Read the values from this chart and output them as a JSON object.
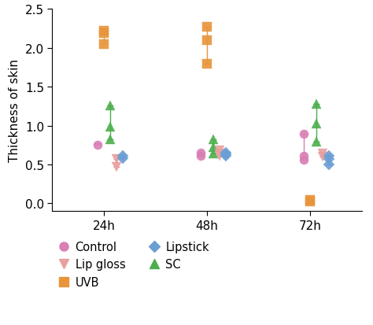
{
  "title": "",
  "ylabel": "Thickness of skin",
  "xlabel": "",
  "xlim": [
    0.5,
    3.5
  ],
  "ylim": [
    -0.1,
    2.5
  ],
  "xticks": [
    1,
    2,
    3
  ],
  "xticklabels": [
    "24h",
    "48h",
    "72h"
  ],
  "yticks": [
    0.0,
    0.5,
    1.0,
    1.5,
    2.0,
    2.5
  ],
  "series": {
    "Control": {
      "color": "#d87fb5",
      "marker": "o",
      "markersize": 8,
      "points": {
        "24h": {
          "mean": 0.755,
          "upper": 0.775,
          "lower": 0.755,
          "raw": [
            0.755
          ]
        },
        "48h": {
          "mean": 0.63,
          "upper": 0.65,
          "lower": 0.61,
          "raw": [
            0.65,
            0.61
          ]
        },
        "72h": {
          "mean": 0.68,
          "upper": 0.89,
          "lower": 0.555,
          "raw": [
            0.89,
            0.61,
            0.555
          ]
        }
      }
    },
    "UVB": {
      "color": "#e8943a",
      "marker": "s",
      "markersize": 8,
      "points": {
        "24h": {
          "mean": 2.14,
          "upper": 2.22,
          "lower": 2.05,
          "raw": [
            2.22,
            2.19,
            2.05
          ]
        },
        "48h": {
          "mean": 2.05,
          "upper": 2.27,
          "lower": 1.8,
          "raw": [
            2.27,
            2.1,
            1.8
          ]
        },
        "72h": {
          "mean": 0.02,
          "upper": 0.04,
          "lower": 0.01,
          "raw": [
            0.04,
            0.02
          ]
        }
      }
    },
    "SC": {
      "color": "#4cae4c",
      "marker": "^",
      "markersize": 9,
      "points": {
        "24h": {
          "mean": 1.01,
          "upper": 1.26,
          "lower": 0.82,
          "raw": [
            1.26,
            0.98,
            0.82
          ]
        },
        "48h": {
          "mean": 0.73,
          "upper": 0.82,
          "lower": 0.64,
          "raw": [
            0.82,
            0.72,
            0.64
          ]
        },
        "72h": {
          "mean": 1.03,
          "upper": 1.28,
          "lower": 0.79,
          "raw": [
            1.28,
            1.03,
            0.79
          ]
        }
      }
    },
    "Lip gloss": {
      "color": "#e8a0a0",
      "marker": "v",
      "markersize": 9,
      "points": {
        "24h": {
          "mean": 0.52,
          "upper": 0.57,
          "lower": 0.47,
          "raw": [
            0.57,
            0.47
          ]
        },
        "48h": {
          "mean": 0.645,
          "upper": 0.68,
          "lower": 0.61,
          "raw": [
            0.68,
            0.645,
            0.61
          ]
        },
        "72h": {
          "mean": 0.615,
          "upper": 0.645,
          "lower": 0.595,
          "raw": [
            0.645,
            0.595
          ]
        }
      }
    },
    "Lipstick": {
      "color": "#6b9fd4",
      "marker": "D",
      "markersize": 7,
      "points": {
        "24h": {
          "mean": 0.595,
          "upper": 0.615,
          "lower": 0.575,
          "raw": [
            0.615,
            0.575
          ]
        },
        "48h": {
          "mean": 0.635,
          "upper": 0.655,
          "lower": 0.615,
          "raw": [
            0.655,
            0.635,
            0.615
          ]
        },
        "72h": {
          "mean": 0.565,
          "upper": 0.615,
          "lower": 0.495,
          "raw": [
            0.615,
            0.565,
            0.495
          ]
        }
      }
    }
  },
  "x_positions": {
    "24h": 1,
    "48h": 2,
    "72h": 3
  },
  "offsets": {
    "Control": -0.06,
    "UVB": 0.0,
    "SC": 0.06,
    "Lip gloss": 0.12,
    "Lipstick": 0.18
  },
  "col1_legend": [
    "Control",
    "UVB",
    "SC"
  ],
  "col2_legend": [
    "Lip gloss",
    "Lipstick"
  ],
  "background_color": "#ffffff"
}
